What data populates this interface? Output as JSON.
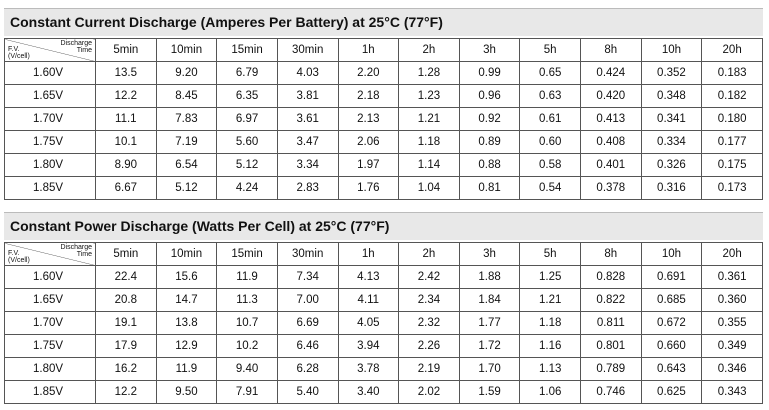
{
  "corner": {
    "time": [
      "Discharge",
      "Time"
    ],
    "fv": [
      "F.V.",
      "(V/cell)"
    ]
  },
  "columns": [
    "5min",
    "10min",
    "15min",
    "30min",
    "1h",
    "2h",
    "3h",
    "5h",
    "8h",
    "10h",
    "20h"
  ],
  "tables": [
    {
      "title": "Constant Current Discharge (Amperes Per Battery) at 25°C (77°F)",
      "rows": [
        {
          "fv": "1.60V",
          "values": [
            "13.5",
            "9.20",
            "6.79",
            "4.03",
            "2.20",
            "1.28",
            "0.99",
            "0.65",
            "0.424",
            "0.352",
            "0.183"
          ]
        },
        {
          "fv": "1.65V",
          "values": [
            "12.2",
            "8.45",
            "6.35",
            "3.81",
            "2.18",
            "1.23",
            "0.96",
            "0.63",
            "0.420",
            "0.348",
            "0.182"
          ]
        },
        {
          "fv": "1.70V",
          "values": [
            "11.1",
            "7.83",
            "6.97",
            "3.61",
            "2.13",
            "1.21",
            "0.92",
            "0.61",
            "0.413",
            "0.341",
            "0.180"
          ]
        },
        {
          "fv": "1.75V",
          "values": [
            "10.1",
            "7.19",
            "5.60",
            "3.47",
            "2.06",
            "1.18",
            "0.89",
            "0.60",
            "0.408",
            "0.334",
            "0.177"
          ]
        },
        {
          "fv": "1.80V",
          "values": [
            "8.90",
            "6.54",
            "5.12",
            "3.34",
            "1.97",
            "1.14",
            "0.88",
            "0.58",
            "0.401",
            "0.326",
            "0.175"
          ]
        },
        {
          "fv": "1.85V",
          "values": [
            "6.67",
            "5.12",
            "4.24",
            "2.83",
            "1.76",
            "1.04",
            "0.81",
            "0.54",
            "0.378",
            "0.316",
            "0.173"
          ]
        }
      ]
    },
    {
      "title": "Constant Power Discharge (Watts Per Cell) at 25°C (77°F)",
      "rows": [
        {
          "fv": "1.60V",
          "values": [
            "22.4",
            "15.6",
            "11.9",
            "7.34",
            "4.13",
            "2.42",
            "1.88",
            "1.25",
            "0.828",
            "0.691",
            "0.361"
          ]
        },
        {
          "fv": "1.65V",
          "values": [
            "20.8",
            "14.7",
            "11.3",
            "7.00",
            "4.11",
            "2.34",
            "1.84",
            "1.21",
            "0.822",
            "0.685",
            "0.360"
          ]
        },
        {
          "fv": "1.70V",
          "values": [
            "19.1",
            "13.8",
            "10.7",
            "6.69",
            "4.05",
            "2.32",
            "1.77",
            "1.18",
            "0.811",
            "0.672",
            "0.355"
          ]
        },
        {
          "fv": "1.75V",
          "values": [
            "17.9",
            "12.9",
            "10.2",
            "6.46",
            "3.94",
            "2.26",
            "1.72",
            "1.16",
            "0.801",
            "0.660",
            "0.349"
          ]
        },
        {
          "fv": "1.80V",
          "values": [
            "16.2",
            "11.9",
            "9.40",
            "6.28",
            "3.78",
            "2.19",
            "1.70",
            "1.13",
            "0.789",
            "0.643",
            "0.346"
          ]
        },
        {
          "fv": "1.85V",
          "values": [
            "12.2",
            "9.50",
            "7.91",
            "5.40",
            "3.40",
            "2.02",
            "1.59",
            "1.06",
            "0.746",
            "0.625",
            "0.343"
          ]
        }
      ]
    }
  ]
}
